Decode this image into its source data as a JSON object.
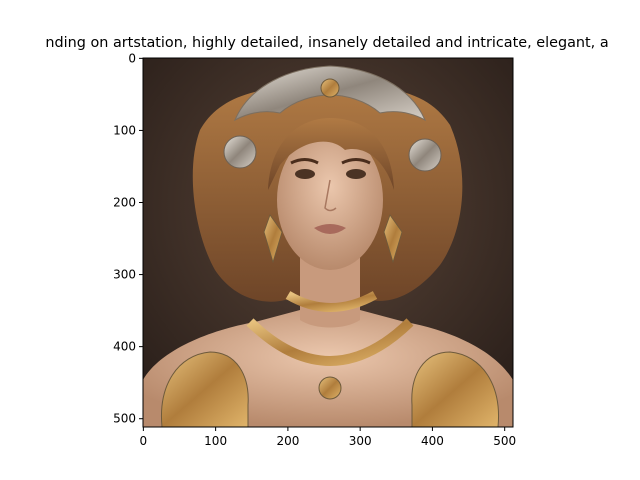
{
  "chart_data": {
    "type": "image",
    "title": "nding on artstation, highly detailed, insanely detailed and intricate, elegant, a",
    "xlabel": "",
    "ylabel": "",
    "xlim": [
      -0.5,
      511.5
    ],
    "ylim": [
      511.5,
      -0.5
    ],
    "y_inverted": true,
    "x_ticks": [
      0,
      100,
      200,
      300,
      400,
      500
    ],
    "y_ticks": [
      0,
      100,
      200,
      300,
      400,
      500
    ],
    "x_tick_labels": [
      "0",
      "100",
      "200",
      "300",
      "400",
      "500"
    ],
    "y_tick_labels": [
      "0",
      "100",
      "200",
      "300",
      "400",
      "500"
    ],
    "grid": false,
    "image_content": "AI-generated portrait of a woman with wavy brown hair wearing an ornate silver and gold filigree crown, drop earrings, layered gold necklaces and ornate gold shoulder pieces, dark brown background"
  },
  "colors": {
    "background": "#3a2c24",
    "hair": "#8a5a34",
    "skin": "#d9b197",
    "gold": "#c8964f",
    "silver": "#b7b0a8"
  }
}
